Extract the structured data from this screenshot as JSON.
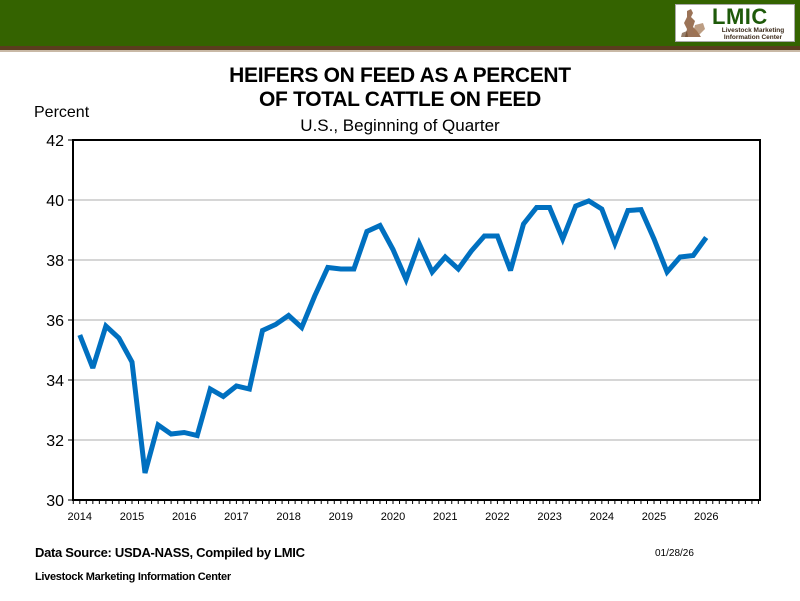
{
  "header": {
    "logo_title": "LMIC",
    "logo_subtitle_line1": "Livestock Marketing",
    "logo_subtitle_line2": "Information Center",
    "banner_color": "#346300"
  },
  "footer": {
    "source": "Data Source:  USDA-NASS, Compiled  by LMIC",
    "date": "01/28/26",
    "organization": "Livestock Marketing Information Center"
  },
  "chart_data": {
    "type": "line",
    "title_line1": "HEIFERS ON FEED AS A PERCENT",
    "title_line2": "OF TOTAL CATTLE ON FEED",
    "subtitle": "U.S., Beginning of Quarter",
    "xlabel": "",
    "ylabel": "Percent",
    "ylim": [
      30,
      42
    ],
    "yticks": [
      30,
      32,
      34,
      36,
      38,
      40,
      42
    ],
    "xlim": [
      2013.87,
      2027.03
    ],
    "xticks": [
      2014,
      2015,
      2016,
      2017,
      2018,
      2019,
      2020,
      2021,
      2022,
      2023,
      2024,
      2025,
      2026
    ],
    "xtick_labels": [
      "2014",
      "2015",
      "2016",
      "2017",
      "2018",
      "2019",
      "2020",
      "2021",
      "2022",
      "2023",
      "2024",
      "2025",
      "2026"
    ],
    "grid": "horizontal",
    "legend": "none",
    "line_color": "#0070c0",
    "series": [
      {
        "name": "Heifers on feed % of total",
        "x": [
          "2014-Q1",
          "2014-Q2",
          "2014-Q3",
          "2014-Q4",
          "2015-Q1",
          "2015-Q2",
          "2015-Q3",
          "2015-Q4",
          "2016-Q1",
          "2016-Q2",
          "2016-Q3",
          "2016-Q4",
          "2017-Q1",
          "2017-Q2",
          "2017-Q3",
          "2017-Q4",
          "2018-Q1",
          "2018-Q2",
          "2018-Q3",
          "2018-Q4",
          "2019-Q1",
          "2019-Q2",
          "2019-Q3",
          "2019-Q4",
          "2020-Q1",
          "2020-Q2",
          "2020-Q3",
          "2020-Q4",
          "2021-Q1",
          "2021-Q2",
          "2021-Q3",
          "2021-Q4",
          "2022-Q1",
          "2022-Q2",
          "2022-Q3",
          "2022-Q4",
          "2023-Q1",
          "2023-Q2",
          "2023-Q3",
          "2023-Q4",
          "2024-Q1",
          "2024-Q2",
          "2024-Q3",
          "2024-Q4",
          "2025-Q1",
          "2025-Q2",
          "2025-Q3",
          "2025-Q4",
          "2026-Q1"
        ],
        "values": [
          35.5,
          34.4,
          35.8,
          35.4,
          34.6,
          30.9,
          32.5,
          32.2,
          32.25,
          32.15,
          33.7,
          33.45,
          33.8,
          33.7,
          35.65,
          35.85,
          36.15,
          35.75,
          36.8,
          37.75,
          37.7,
          37.7,
          38.95,
          39.15,
          38.35,
          37.35,
          38.55,
          37.6,
          38.1,
          37.7,
          38.3,
          38.8,
          38.8,
          37.65,
          39.2,
          39.75,
          39.75,
          38.7,
          39.8,
          39.97,
          39.7,
          38.55,
          39.65,
          39.68,
          38.7,
          37.6,
          38.1,
          38.15,
          38.75
        ]
      }
    ]
  }
}
